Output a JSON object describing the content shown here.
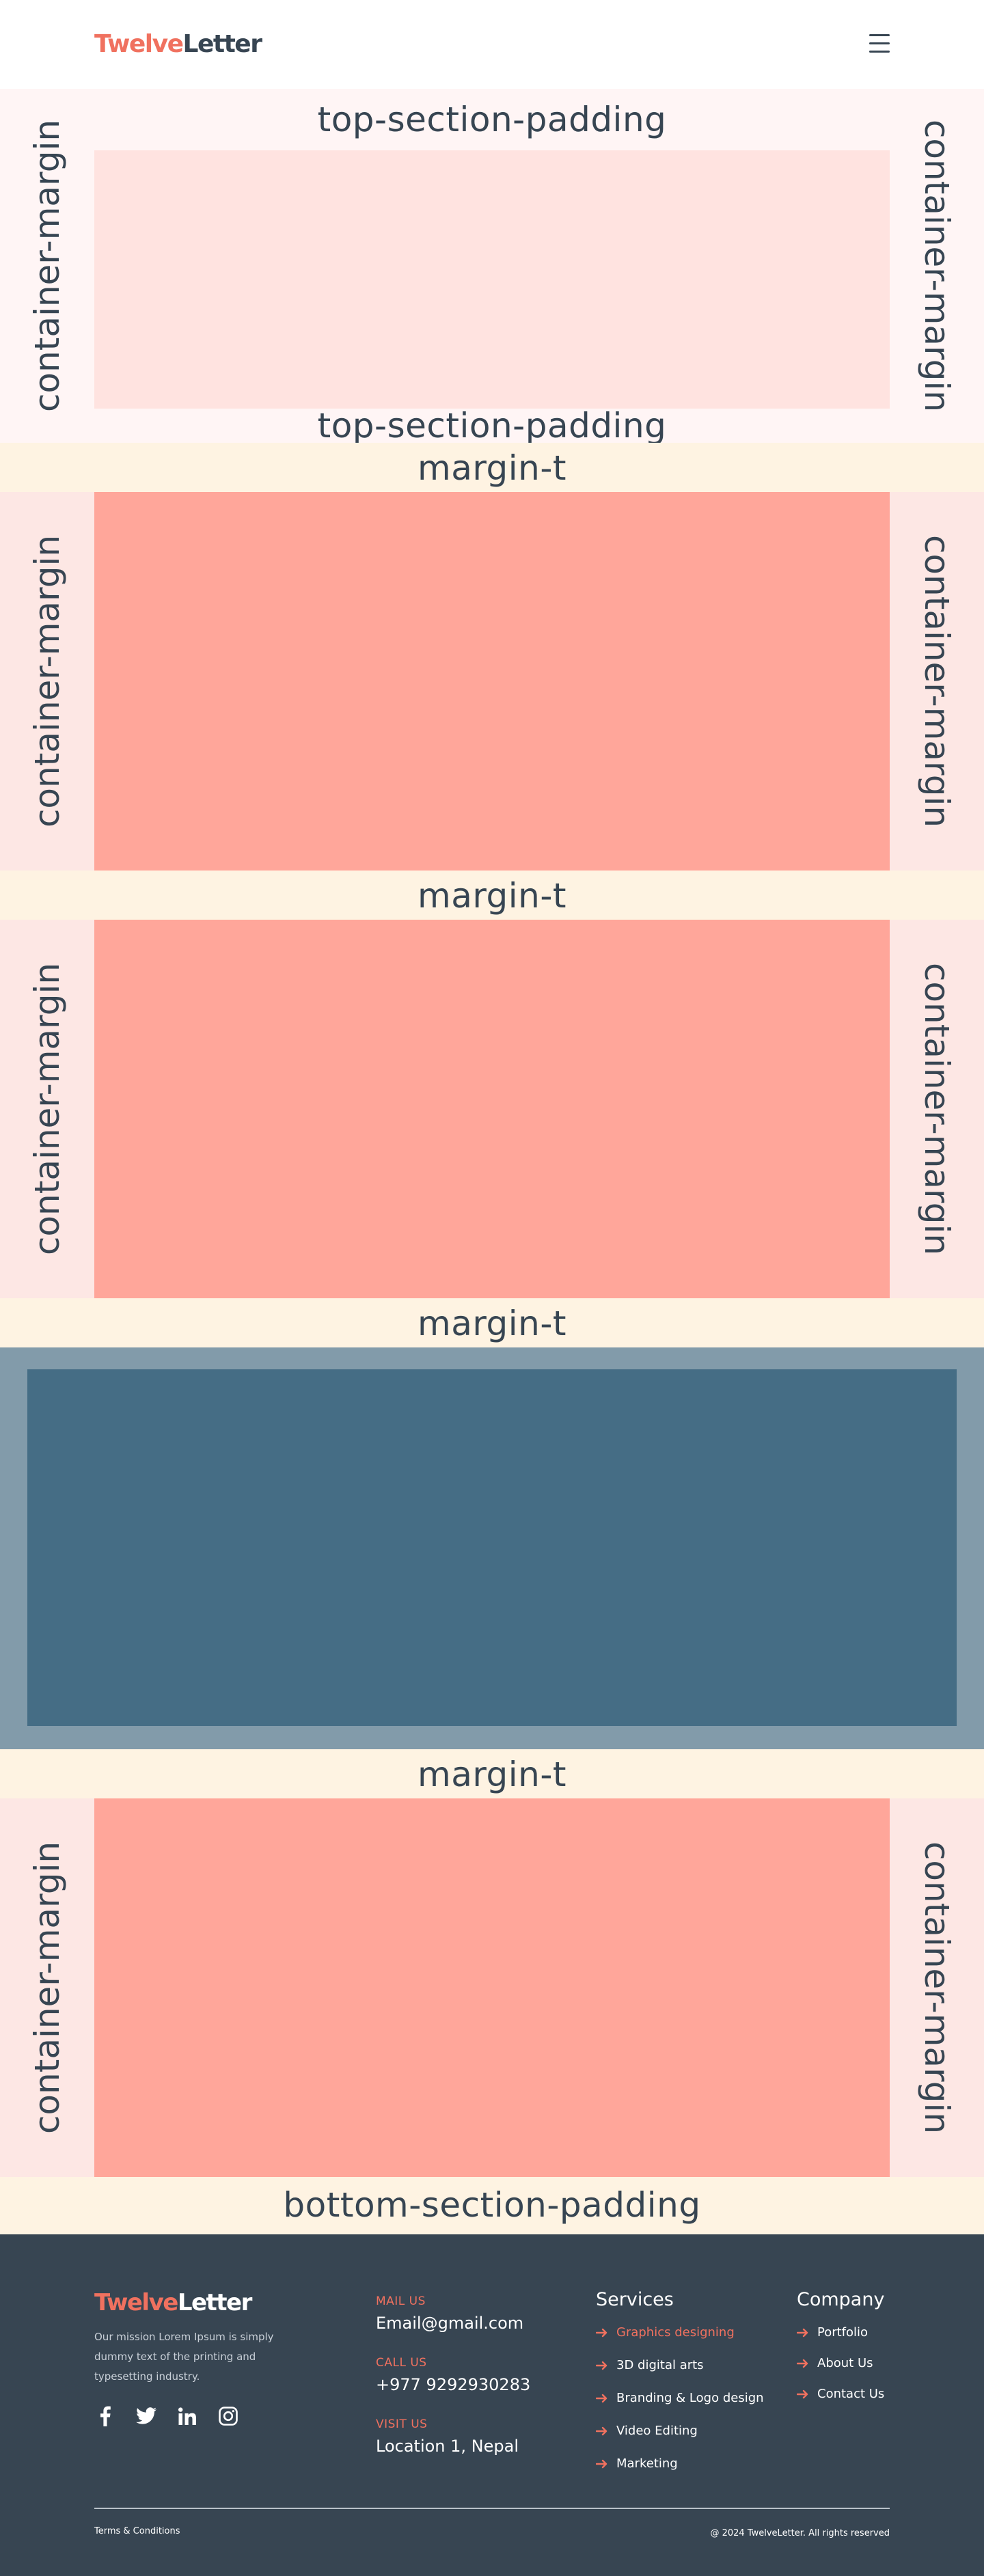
{
  "header": {
    "logo_accent": "Twelve",
    "logo_dark": "Letter",
    "menu_icon": "hamburger-menu-icon"
  },
  "sections": {
    "top_padding_label": "top-section-padding",
    "container_margin_label": "container-margin",
    "margin_t_label": "margin-t",
    "bottom_padding_label": "bottom-section-padding"
  },
  "colors": {
    "accent": "#f0715f",
    "dark": "#374552",
    "hero_bg": "#fff5f5",
    "hero_block": "#ffe3e0",
    "margin_band": "#fef3e2",
    "side_band": "#fde7e4",
    "salmon_block": "#ffa69a",
    "fullwidth_bg": "#829baa",
    "fullwidth_block": "#456d85"
  },
  "footer": {
    "logo_accent": "Twelve",
    "logo_light": "Letter",
    "mission": "Our mission Lorem Ipsum is simply dummy text of the printing and typesetting industry.",
    "social": [
      "facebook-icon",
      "twitter-icon",
      "linkedin-icon",
      "instagram-icon"
    ],
    "contact": {
      "mail_label": "MAIL US",
      "mail_value": "Email@gmail.com",
      "call_label": "CALL US",
      "call_value": "+977 9292930283",
      "visit_label": "VISIT US",
      "visit_value": "Location 1, Nepal"
    },
    "services": {
      "title": "Services",
      "items": [
        "Graphics designing",
        "3D digital arts",
        "Branding & Logo design",
        "Video Editing",
        "Marketing"
      ]
    },
    "company": {
      "title": "Company",
      "items": [
        "Portfolio",
        "About Us",
        "Contact Us"
      ]
    },
    "terms": "Terms & Conditions",
    "copyright": "@ 2024 TwelveLetter. All rights reserved"
  }
}
